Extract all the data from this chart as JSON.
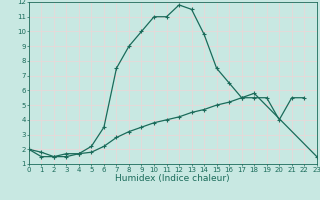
{
  "xlabel": "Humidex (Indice chaleur)",
  "bg_color": "#c8e8e2",
  "grid_color": "#e8d8d8",
  "line_color": "#1a6b5a",
  "xlim_min": 0,
  "xlim_max": 23,
  "ylim_min": 1,
  "ylim_max": 12,
  "xticks": [
    0,
    1,
    2,
    3,
    4,
    5,
    6,
    7,
    8,
    9,
    10,
    11,
    12,
    13,
    14,
    15,
    16,
    17,
    18,
    19,
    20,
    21,
    22,
    23
  ],
  "yticks": [
    1,
    2,
    3,
    4,
    5,
    6,
    7,
    8,
    9,
    10,
    11,
    12
  ],
  "curve1_x": [
    0,
    1,
    2,
    3,
    4,
    5,
    6,
    7,
    8,
    9,
    10,
    11,
    12,
    13,
    14,
    15,
    16,
    17,
    18,
    19,
    20,
    21,
    22
  ],
  "curve1_y": [
    2.0,
    1.8,
    1.5,
    1.5,
    1.7,
    2.2,
    3.5,
    7.5,
    9.0,
    10.0,
    11.0,
    11.0,
    11.8,
    11.5,
    9.8,
    7.5,
    6.5,
    5.5,
    5.5,
    5.5,
    4.0,
    5.5,
    5.5
  ],
  "curve2_x": [
    0,
    1,
    2,
    3,
    4,
    5,
    6,
    7,
    8,
    9,
    10,
    11,
    12,
    13,
    14,
    15,
    16,
    17,
    18,
    23
  ],
  "curve2_y": [
    2.0,
    1.5,
    1.5,
    1.7,
    1.7,
    1.8,
    2.2,
    2.8,
    3.2,
    3.5,
    3.8,
    4.0,
    4.2,
    4.5,
    4.7,
    5.0,
    5.2,
    5.5,
    5.8,
    1.5
  ],
  "marker": "+",
  "markersize": 3.5,
  "linewidth": 0.9,
  "fontsize_label": 6.5,
  "fontsize_tick": 5.0
}
